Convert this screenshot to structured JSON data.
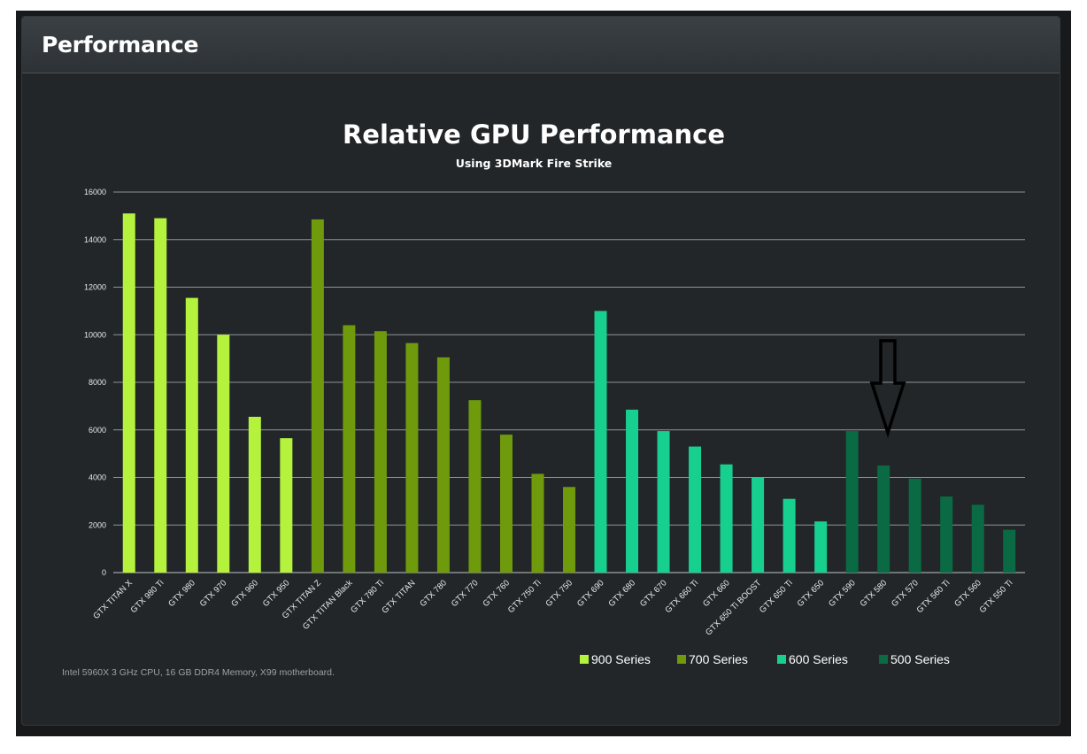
{
  "header": {
    "title": "Performance"
  },
  "footnote": "Intel 5960X  3 GHz CPU, 16 GB DDR4 Memory, X99 motherboard.",
  "colors": {
    "900 Series": "#b5f23d",
    "700 Series": "#6e9a0c",
    "600 Series": "#17d08f",
    "500 Series": "#0a6a44"
  },
  "annotation": {
    "icon": "down-arrow-icon",
    "target": "GTX 580"
  },
  "chart_data": {
    "type": "bar",
    "title": "Relative GPU Performance",
    "subtitle": "Using 3DMark Fire Strike",
    "xlabel": "",
    "ylabel": "",
    "ylim": [
      0,
      16000
    ],
    "yticks": [
      0,
      2000,
      4000,
      6000,
      8000,
      10000,
      12000,
      14000,
      16000
    ],
    "grid": true,
    "legend_position": "bottom-right",
    "categories": [
      "GTX TITAN X",
      "GTX 980 Ti",
      "GTX 980",
      "GTX 970",
      "GTX 960",
      "GTX 950",
      "GTX TITAN Z",
      "GTX TITAN Black",
      "GTX 780 Ti",
      "GTX TITAN",
      "GTX 780",
      "GTX 770",
      "GTX 760",
      "GTX 750 Ti",
      "GTX 750",
      "GTX 690",
      "GTX 680",
      "GTX 670",
      "GTX 660 Ti",
      "GTX 660",
      "GTX 650 Ti BOOST",
      "GTX 650 Ti",
      "GTX 650",
      "GTX 590",
      "GTX 580",
      "GTX 570",
      "GTX 560 Ti",
      "GTX 560",
      "GTX 550 Ti"
    ],
    "values": [
      15100,
      14900,
      11550,
      10000,
      6550,
      5650,
      14850,
      10400,
      10150,
      9650,
      9050,
      7250,
      5800,
      4150,
      3600,
      11000,
      6850,
      5950,
      5300,
      4550,
      4000,
      3100,
      2150,
      5950,
      4500,
      3950,
      3200,
      2850,
      1800
    ],
    "series_groups": [
      "900 Series",
      "900 Series",
      "900 Series",
      "900 Series",
      "900 Series",
      "900 Series",
      "700 Series",
      "700 Series",
      "700 Series",
      "700 Series",
      "700 Series",
      "700 Series",
      "700 Series",
      "700 Series",
      "700 Series",
      "600 Series",
      "600 Series",
      "600 Series",
      "600 Series",
      "600 Series",
      "600 Series",
      "600 Series",
      "600 Series",
      "500 Series",
      "500 Series",
      "500 Series",
      "500 Series",
      "500 Series",
      "500 Series"
    ],
    "legend": [
      "900 Series",
      "700 Series",
      "600 Series",
      "500 Series"
    ]
  }
}
